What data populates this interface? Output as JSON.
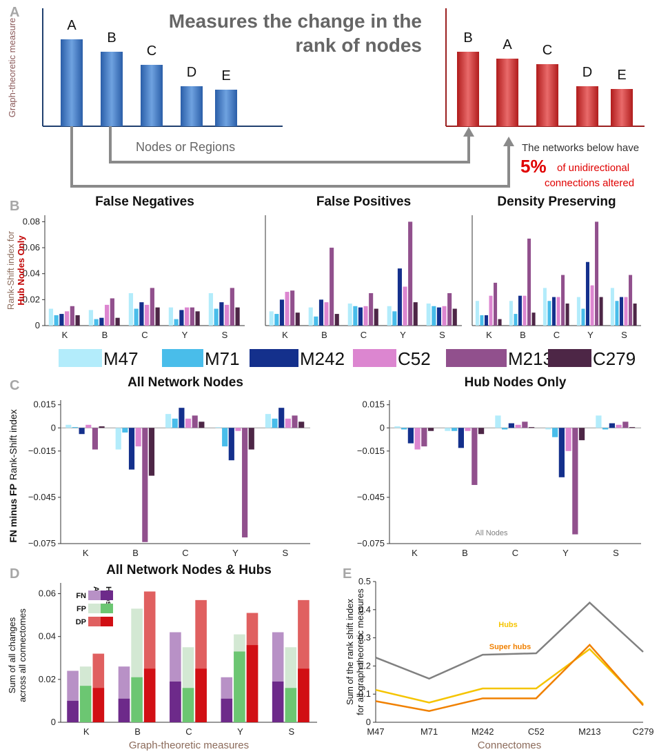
{
  "panel_labels": [
    "A",
    "B",
    "C",
    "D",
    "E"
  ],
  "diagram": {
    "title": [
      "Measures the change in the",
      "rank of nodes"
    ],
    "y_label": "Graph-theoretic measure",
    "x_label": "Nodes or Regions",
    "before": [
      "A",
      "B",
      "C",
      "D",
      "E"
    ],
    "after": [
      "B",
      "A",
      "C",
      "D",
      "E"
    ],
    "note": {
      "line1": "The networks below have",
      "percent": "5%",
      "line2": "of unidirectional",
      "line3": "connections altered"
    }
  },
  "shared_legend": [
    {
      "name": "M47",
      "color": "#b3ecfb"
    },
    {
      "name": "M71",
      "color": "#49bdea"
    },
    {
      "name": "M242",
      "color": "#14308c"
    },
    {
      "name": "C52",
      "color": "#dc86d0"
    },
    {
      "name": "M213",
      "color": "#91508d"
    },
    {
      "name": "C279",
      "color": "#4d2646"
    }
  ],
  "chart_data": [
    {
      "type": "bar",
      "title": "False Negatives",
      "y_label": [
        "Rank-Shift index for",
        "Hub Nodes Only"
      ],
      "categories": [
        "K",
        "B",
        "C",
        "Y",
        "S"
      ],
      "series": [
        {
          "values": [
            0.013,
            0.012,
            0.025,
            0.014,
            0.025
          ]
        },
        {
          "values": [
            0.008,
            0.005,
            0.013,
            0.005,
            0.013
          ]
        },
        {
          "values": [
            0.009,
            0.006,
            0.018,
            0.012,
            0.018
          ]
        },
        {
          "values": [
            0.011,
            0.016,
            0.016,
            0.014,
            0.016
          ]
        },
        {
          "values": [
            0.015,
            0.021,
            0.029,
            0.014,
            0.029
          ]
        },
        {
          "values": [
            0.008,
            0.006,
            0.014,
            0.011,
            0.014
          ]
        }
      ],
      "ylim": [
        0,
        0.085
      ],
      "yticks": [
        0,
        0.02,
        0.04,
        0.06,
        0.08
      ]
    },
    {
      "type": "bar",
      "title": "False Positives",
      "categories": [
        "K",
        "B",
        "C",
        "Y",
        "S"
      ],
      "series": [
        {
          "values": [
            0.011,
            0.014,
            0.017,
            0.015,
            0.017
          ]
        },
        {
          "values": [
            0.009,
            0.007,
            0.015,
            0.011,
            0.015
          ]
        },
        {
          "values": [
            0.02,
            0.02,
            0.014,
            0.044,
            0.014
          ]
        },
        {
          "values": [
            0.026,
            0.018,
            0.015,
            0.03,
            0.015
          ]
        },
        {
          "values": [
            0.027,
            0.06,
            0.025,
            0.08,
            0.025
          ]
        },
        {
          "values": [
            0.01,
            0.009,
            0.013,
            0.018,
            0.013
          ]
        }
      ],
      "ylim": [
        0,
        0.085
      ]
    },
    {
      "type": "bar",
      "title": "Density Preserving",
      "categories": [
        "K",
        "B",
        "C",
        "Y",
        "S"
      ],
      "series": [
        {
          "values": [
            0.019,
            0.019,
            0.029,
            0.022,
            0.029
          ]
        },
        {
          "values": [
            0.008,
            0.009,
            0.019,
            0.013,
            0.019
          ]
        },
        {
          "values": [
            0.008,
            0.023,
            0.022,
            0.049,
            0.022
          ]
        },
        {
          "values": [
            0.023,
            0.023,
            0.022,
            0.031,
            0.022
          ]
        },
        {
          "values": [
            0.033,
            0.067,
            0.039,
            0.08,
            0.039
          ]
        },
        {
          "values": [
            0.005,
            0.01,
            0.017,
            0.022,
            0.017
          ]
        }
      ],
      "ylim": [
        0,
        0.085
      ]
    },
    {
      "type": "bar",
      "title": "All Network Nodes",
      "y_label": [
        "FN minus FP",
        "Rank-Shift index"
      ],
      "categories": [
        "K",
        "B",
        "C",
        "Y",
        "S"
      ],
      "series": [
        {
          "values": [
            0.002,
            -0.014,
            0.009,
            0.0005,
            0.009
          ]
        },
        {
          "values": [
            0.0005,
            -0.003,
            0.006,
            -0.012,
            0.006
          ]
        },
        {
          "values": [
            -0.004,
            -0.027,
            0.013,
            -0.021,
            0.013
          ]
        },
        {
          "values": [
            0.002,
            -0.012,
            0.006,
            -0.002,
            0.006
          ]
        },
        {
          "values": [
            -0.014,
            -0.074,
            0.008,
            -0.071,
            0.008
          ]
        },
        {
          "values": [
            0.001,
            -0.031,
            0.004,
            -0.014,
            0.004
          ]
        }
      ],
      "ylim": [
        -0.075,
        0.018
      ],
      "yticks": [
        0.015,
        0,
        {
          "value": -0.015,
          "label": "−0.015"
        },
        {
          "value": -0.045,
          "label": "−0.045"
        },
        {
          "value": -0.075,
          "label": "−0.075"
        }
      ]
    },
    {
      "type": "bar",
      "title": "Hub Nodes Only",
      "categories": [
        "K",
        "B",
        "C",
        "Y",
        "S"
      ],
      "series": [
        {
          "values": [
            0.001,
            -0.002,
            0.008,
            -0.001,
            0.008
          ]
        },
        {
          "values": [
            -0.001,
            -0.002,
            -0.001,
            -0.006,
            -0.001
          ]
        },
        {
          "values": [
            -0.01,
            -0.013,
            0.003,
            -0.032,
            0.003
          ]
        },
        {
          "values": [
            -0.014,
            -0.002,
            0.002,
            -0.015,
            0.002
          ]
        },
        {
          "values": [
            -0.012,
            -0.037,
            0.004,
            -0.069,
            0.004
          ]
        },
        {
          "values": [
            -0.002,
            -0.004,
            0.0005,
            -0.008,
            0.0005
          ]
        }
      ],
      "ylim": [
        -0.075,
        0.018
      ],
      "yticks": [
        0.015,
        0,
        {
          "value": -0.015,
          "label": "−0.015"
        },
        {
          "value": -0.045,
          "label": "−0.045"
        },
        {
          "value": -0.075,
          "label": "−0.075"
        }
      ]
    },
    {
      "type": "overlay_bar",
      "title": "All Network Nodes & Hubs",
      "y_label": [
        "Sum of all changes",
        "across all connectomes"
      ],
      "x_label": "Graph-theoretic measures",
      "categories": [
        "K",
        "B",
        "C",
        "Y",
        "S"
      ],
      "legend_columns": [
        "All",
        "Hubs"
      ],
      "series": [
        {
          "name": "FN",
          "all": {
            "color": "#b891c6",
            "values": [
              0.024,
              0.026,
              0.042,
              0.021,
              0.042
            ]
          },
          "hubs": {
            "color": "#6d2a8a",
            "values": [
              0.01,
              0.011,
              0.019,
              0.011,
              0.019
            ]
          }
        },
        {
          "name": "FP",
          "all": {
            "color": "#d3e8d3",
            "values": [
              0.026,
              0.053,
              0.035,
              0.041,
              0.035
            ]
          },
          "hubs": {
            "color": "#6cc672",
            "values": [
              0.017,
              0.021,
              0.016,
              0.033,
              0.016
            ]
          }
        },
        {
          "name": "DP",
          "all": {
            "color": "#e06060",
            "values": [
              0.032,
              0.061,
              0.057,
              0.051,
              0.057
            ]
          },
          "hubs": {
            "color": "#d10f14",
            "values": [
              0.016,
              0.025,
              0.025,
              0.036,
              0.025
            ]
          }
        }
      ],
      "ylim": [
        0,
        0.065
      ],
      "yticks": [
        0,
        0.02,
        0.04,
        0.06
      ]
    },
    {
      "type": "line",
      "y_label": [
        "Sum of the rank shift index",
        "for all graph-theoretic measures"
      ],
      "x_label": "Connectomes",
      "categories": [
        "M47",
        "M71",
        "M242",
        "C52",
        "M213",
        "C279"
      ],
      "series": [
        {
          "name": "All Nodes",
          "color": "#808080",
          "values": [
            0.23,
            0.155,
            0.24,
            0.245,
            0.425,
            0.25
          ]
        },
        {
          "name": "Hubs",
          "color": "#f5c400",
          "values": [
            0.115,
            0.07,
            0.12,
            0.12,
            0.26,
            0.065
          ]
        },
        {
          "name": "Super hubs",
          "color": "#f08000",
          "values": [
            0.075,
            0.04,
            0.085,
            0.085,
            0.275,
            0.06
          ]
        }
      ],
      "ylim": [
        0,
        0.5
      ],
      "yticks": [
        0,
        0.1,
        0.2,
        0.3,
        0.4,
        0.5
      ]
    }
  ]
}
